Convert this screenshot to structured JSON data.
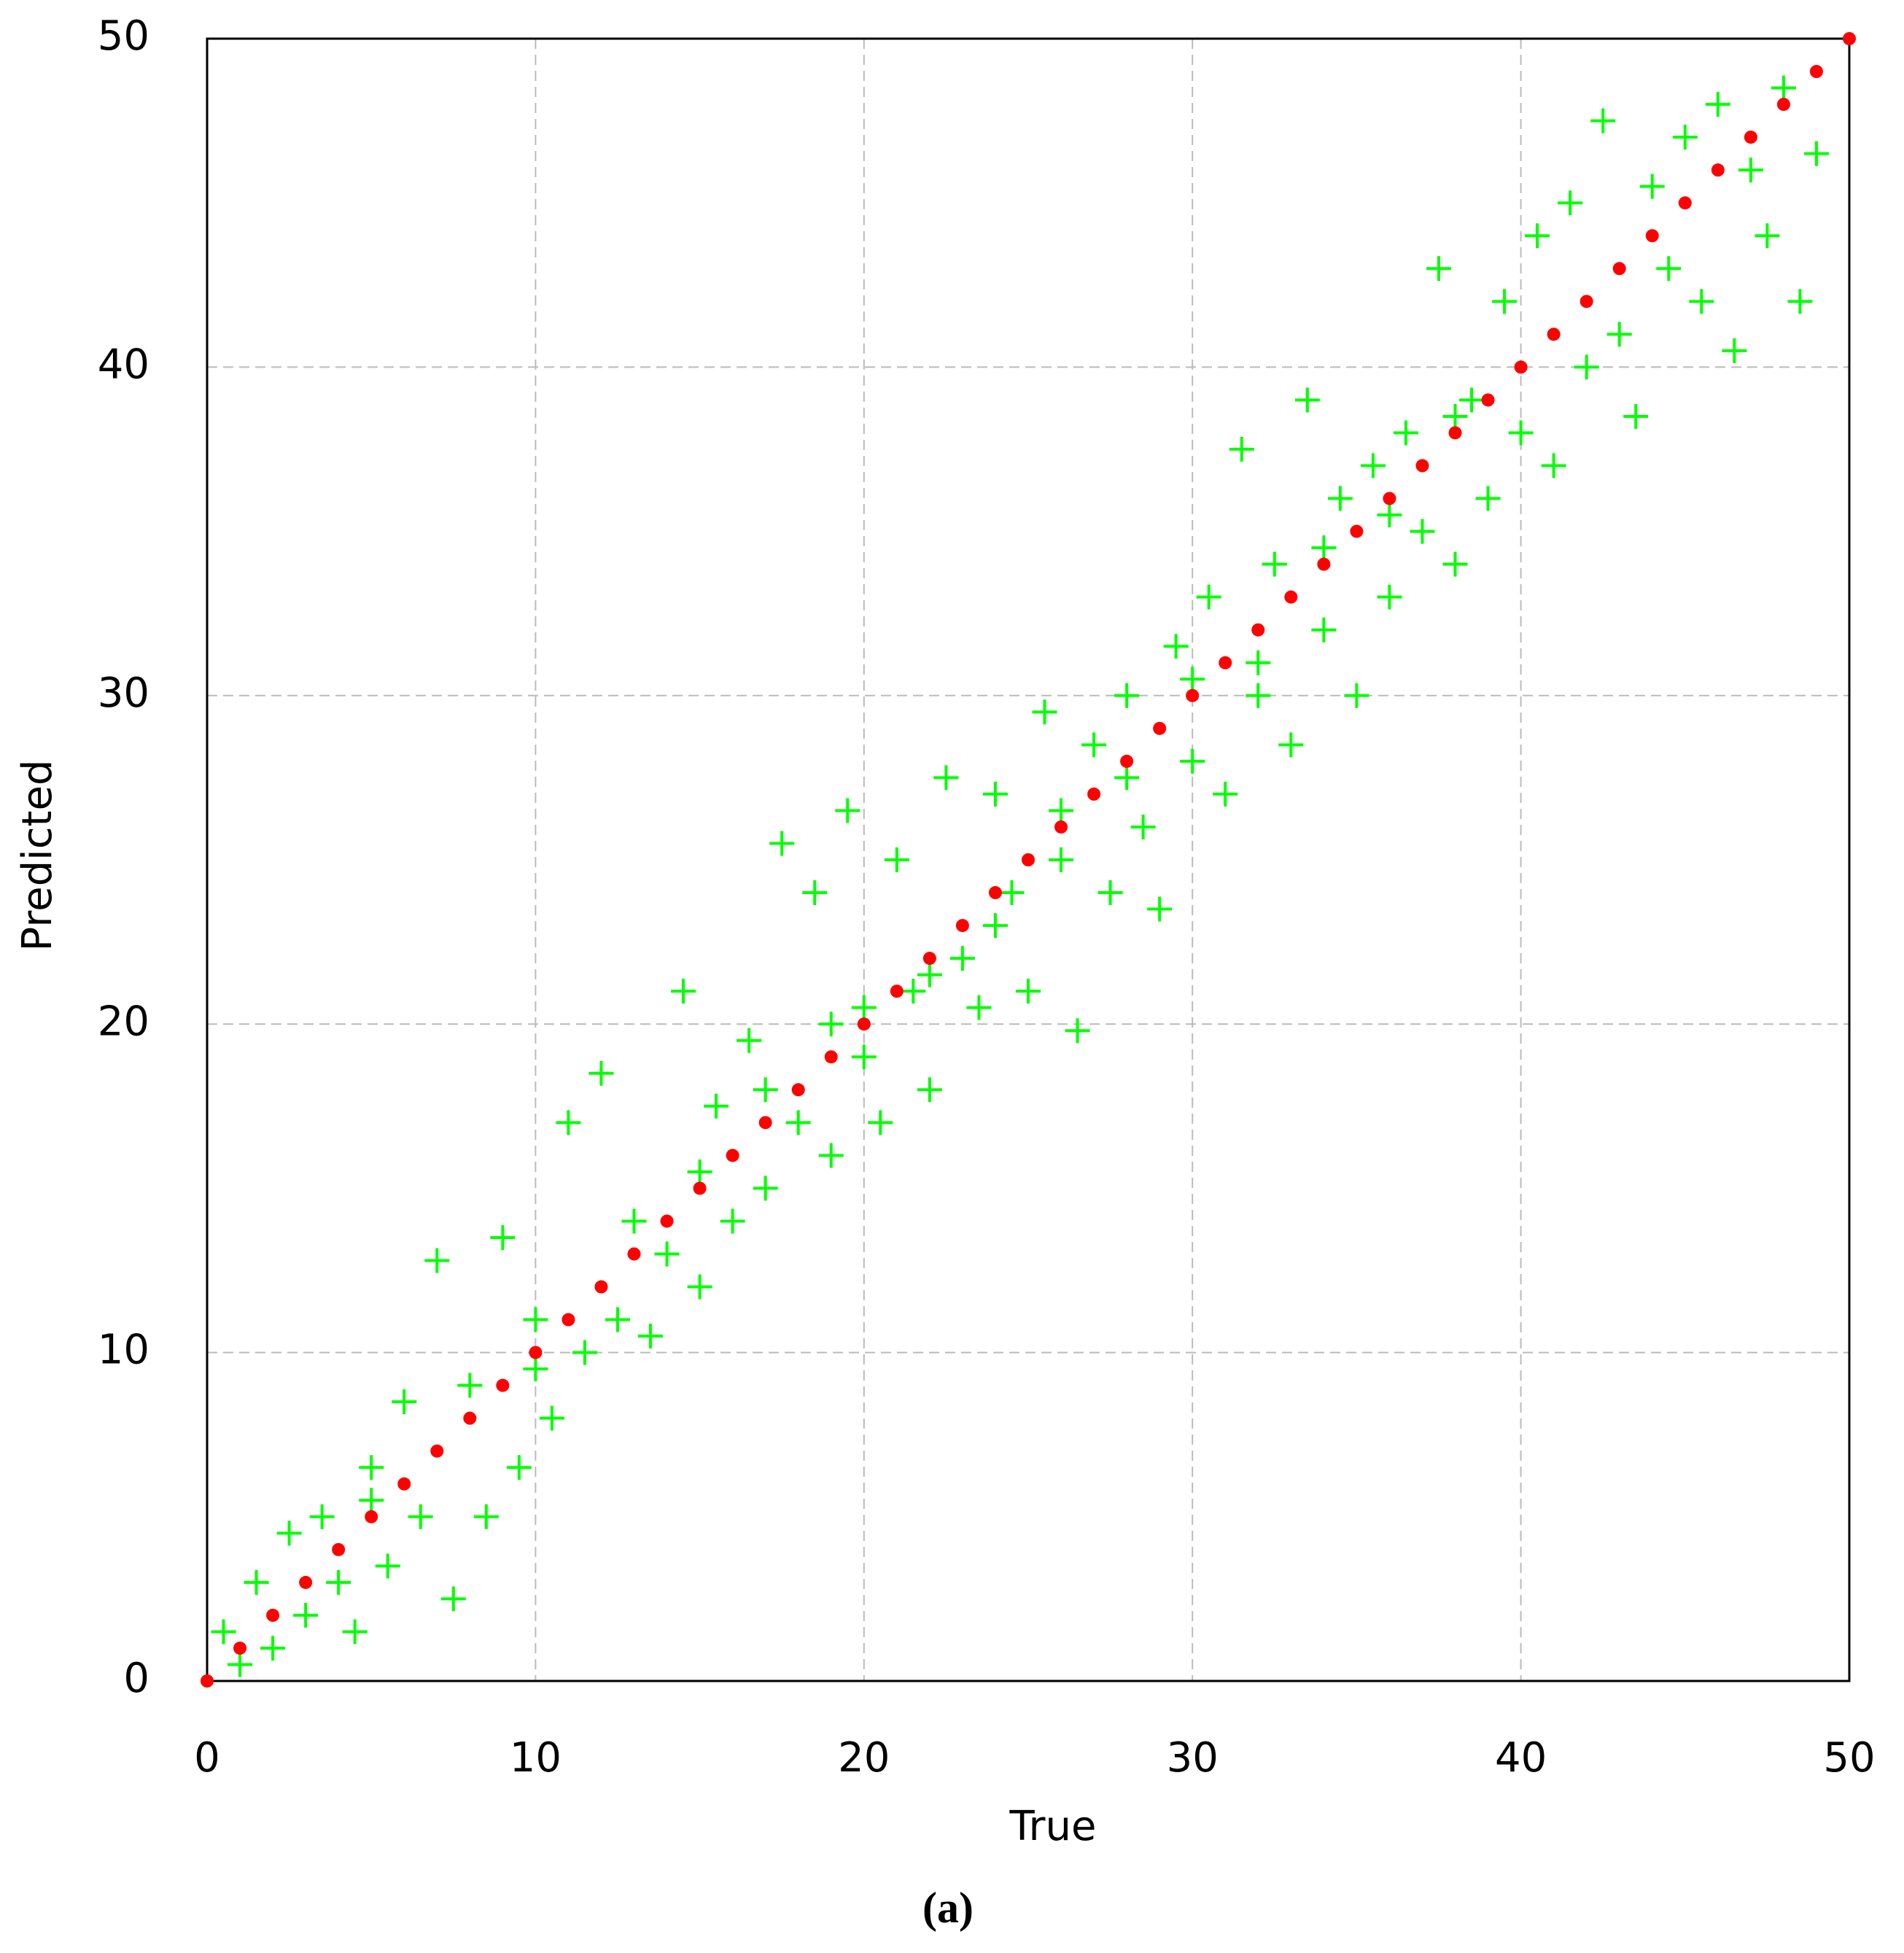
{
  "chart_data": {
    "type": "scatter",
    "xlabel": "True",
    "ylabel": "Predicted",
    "caption": "(a)",
    "xlim": [
      0,
      50
    ],
    "ylim": [
      0,
      50
    ],
    "xticks": [
      0,
      10,
      20,
      30,
      40,
      50
    ],
    "yticks": [
      0,
      10,
      20,
      30,
      40,
      50
    ],
    "grid": true,
    "series": [
      {
        "color": "#00ff00",
        "marker": "plus",
        "x": [
          0.5,
          1,
          1.5,
          2,
          2.5,
          3,
          3.5,
          4,
          4.5,
          5,
          5.5,
          6,
          6.5,
          7,
          7.5,
          8,
          8.5,
          9,
          9.5,
          10,
          10.5,
          11,
          11.5,
          12,
          12.5,
          13,
          13.5,
          14,
          14.5,
          15,
          15.5,
          16,
          16.5,
          17,
          17.5,
          18,
          18.5,
          19,
          19.5,
          20,
          20.5,
          21,
          21.5,
          22,
          22.5,
          23,
          23.5,
          24,
          24.5,
          25,
          25.5,
          26,
          26.5,
          27,
          27.5,
          28,
          28.5,
          29,
          29.5,
          30,
          30.5,
          31,
          31.5,
          32,
          32.5,
          33,
          33.5,
          34,
          34.5,
          35,
          35.5,
          36,
          36.5,
          37,
          37.5,
          38,
          38.5,
          39,
          39.5,
          40,
          40.5,
          41,
          41.5,
          42,
          42.5,
          43,
          43.5,
          44,
          44.5,
          45,
          45.5,
          46,
          46.5,
          47,
          47.5,
          48,
          48.5,
          49,
          20,
          22,
          24,
          26,
          28,
          30,
          32,
          34,
          36,
          38,
          15,
          10,
          5,
          17,
          19
        ],
        "values": [
          1.5,
          0.5,
          3,
          1,
          4.5,
          2,
          5,
          3,
          1.5,
          6.5,
          3.5,
          8.5,
          5,
          12.8,
          2.5,
          9,
          5,
          13.5,
          6.5,
          11,
          8,
          17,
          10,
          18.5,
          11,
          14,
          10.5,
          13,
          21,
          12,
          17.5,
          14,
          19.5,
          15,
          25.5,
          17,
          24,
          16,
          26.5,
          19,
          17,
          25,
          21,
          18,
          27.5,
          22,
          20.5,
          27,
          24,
          21,
          29.5,
          25,
          19.8,
          28.5,
          24,
          30,
          26,
          23.5,
          31.5,
          28,
          33,
          27,
          37.5,
          30,
          34,
          28.5,
          39,
          32,
          36,
          30,
          37,
          33,
          38,
          35,
          43,
          34,
          39,
          36,
          42,
          38,
          44,
          37,
          45,
          40,
          47.5,
          41,
          38.5,
          45.5,
          43,
          47,
          42,
          48,
          40.5,
          46,
          44,
          48.5,
          42,
          46.5,
          20.5,
          21.5,
          23,
          26.5,
          27.5,
          30.5,
          31,
          34.5,
          35.5,
          38.5,
          15.5,
          9.5,
          5.5,
          18,
          20
        ]
      },
      {
        "color": "#ff0000",
        "marker": "dot",
        "x": [
          0,
          1,
          2,
          3,
          4,
          5,
          6,
          7,
          8,
          9,
          10,
          11,
          12,
          13,
          14,
          15,
          16,
          17,
          18,
          19,
          20,
          21,
          22,
          23,
          24,
          25,
          26,
          27,
          28,
          29,
          30,
          31,
          32,
          33,
          34,
          35,
          36,
          37,
          38,
          39,
          40,
          41,
          42,
          43,
          44,
          45,
          46,
          47,
          48,
          49,
          50
        ],
        "values": [
          0,
          1,
          2,
          3,
          4,
          5,
          6,
          7,
          8,
          9,
          10,
          11,
          12,
          13,
          14,
          15,
          16,
          17,
          18,
          19,
          20,
          21,
          22,
          23,
          24,
          25,
          26,
          27,
          28,
          29,
          30,
          31,
          32,
          33,
          34,
          35,
          36,
          37,
          38,
          39,
          40,
          41,
          42,
          43,
          44,
          45,
          46,
          47,
          48,
          49,
          50
        ]
      }
    ]
  }
}
